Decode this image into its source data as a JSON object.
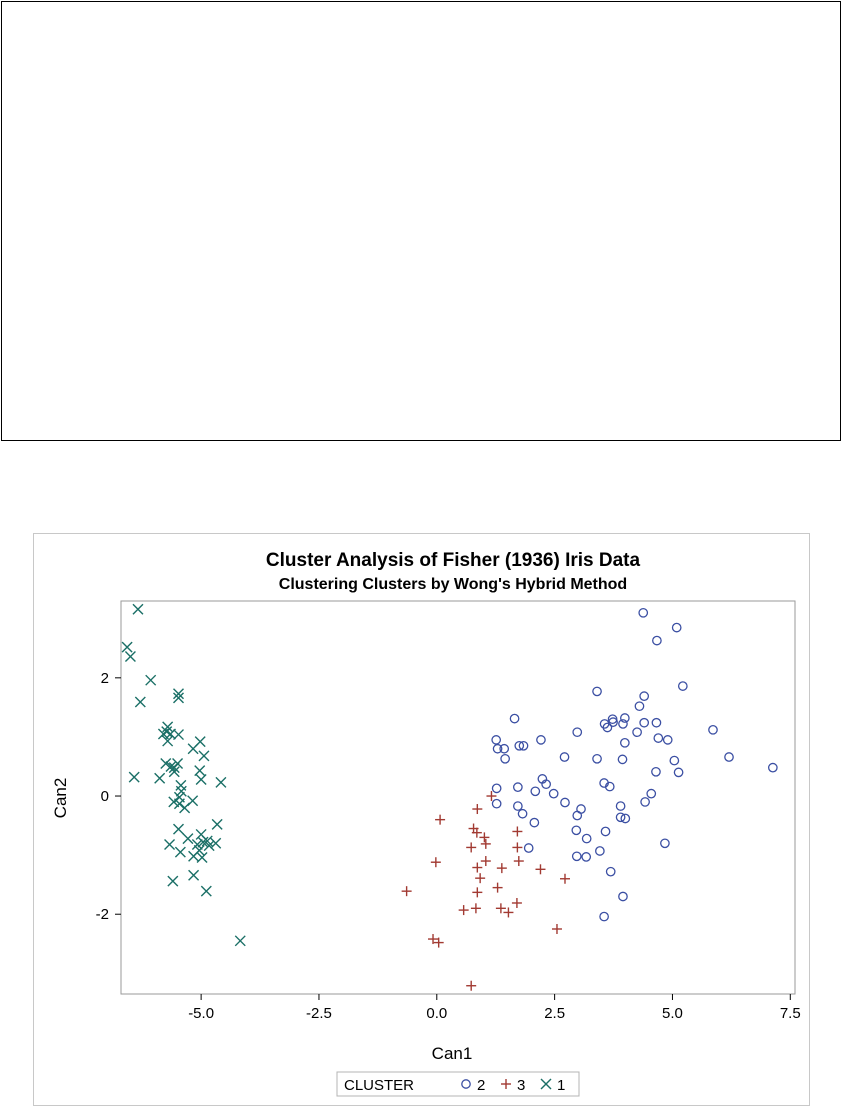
{
  "chart_data": {
    "type": "scatter",
    "title": "Cluster Analysis of Fisher (1936) Iris Data",
    "subtitle": "Clustering Clusters by Wong's Hybrid Method",
    "xlabel": "Can1",
    "ylabel": "Can2",
    "xlim": [
      -6.7,
      7.6
    ],
    "ylim": [
      -3.35,
      3.3
    ],
    "xticks": [
      -5.0,
      -2.5,
      0.0,
      2.5,
      5.0,
      7.5
    ],
    "xtick_labels": [
      "-5.0",
      "-2.5",
      "0.0",
      "2.5",
      "5.0",
      "7.5"
    ],
    "yticks": [
      -2,
      0,
      2
    ],
    "ytick_labels": [
      "-2",
      "0",
      "2"
    ],
    "grid": false,
    "legend": {
      "title": "CLUSTER",
      "placement": "bottom-center",
      "entries": [
        "2",
        "3",
        "1"
      ]
    },
    "series": [
      {
        "name": "2",
        "marker": "circle",
        "color": "#3b4fa3",
        "points": [
          [
            4.38,
            3.1
          ],
          [
            5.09,
            2.85
          ],
          [
            4.67,
            2.63
          ],
          [
            5.22,
            1.86
          ],
          [
            3.4,
            1.77
          ],
          [
            4.4,
            1.69
          ],
          [
            4.3,
            1.52
          ],
          [
            1.65,
            1.31
          ],
          [
            3.73,
            1.3
          ],
          [
            3.99,
            1.32
          ],
          [
            3.74,
            1.25
          ],
          [
            4.4,
            1.24
          ],
          [
            3.95,
            1.22
          ],
          [
            4.66,
            1.24
          ],
          [
            3.56,
            1.22
          ],
          [
            3.62,
            1.16
          ],
          [
            5.86,
            1.12
          ],
          [
            2.98,
            1.08
          ],
          [
            4.25,
            1.08
          ],
          [
            4.7,
            0.98
          ],
          [
            4.9,
            0.95
          ],
          [
            2.21,
            0.95
          ],
          [
            1.26,
            0.95
          ],
          [
            3.99,
            0.9
          ],
          [
            1.29,
            0.8
          ],
          [
            1.75,
            0.85
          ],
          [
            1.84,
            0.85
          ],
          [
            1.43,
            0.8
          ],
          [
            6.2,
            0.66
          ],
          [
            2.71,
            0.66
          ],
          [
            1.45,
            0.63
          ],
          [
            3.4,
            0.63
          ],
          [
            3.94,
            0.62
          ],
          [
            5.04,
            0.6
          ],
          [
            7.13,
            0.48
          ],
          [
            4.65,
            0.41
          ],
          [
            5.13,
            0.4
          ],
          [
            2.24,
            0.29
          ],
          [
            3.55,
            0.22
          ],
          [
            2.32,
            0.2
          ],
          [
            3.67,
            0.16
          ],
          [
            1.72,
            0.15
          ],
          [
            1.27,
            0.13
          ],
          [
            2.09,
            0.08
          ],
          [
            2.48,
            0.04
          ],
          [
            4.55,
            0.04
          ],
          [
            4.42,
            -0.1
          ],
          [
            2.72,
            -0.11
          ],
          [
            1.27,
            -0.13
          ],
          [
            1.72,
            -0.17
          ],
          [
            3.9,
            -0.17
          ],
          [
            3.06,
            -0.22
          ],
          [
            2.98,
            -0.33
          ],
          [
            3.9,
            -0.36
          ],
          [
            1.82,
            -0.3
          ],
          [
            4.0,
            -0.38
          ],
          [
            2.07,
            -0.45
          ],
          [
            2.96,
            -0.58
          ],
          [
            3.58,
            -0.6
          ],
          [
            3.18,
            -0.72
          ],
          [
            4.84,
            -0.8
          ],
          [
            1.95,
            -0.88
          ],
          [
            3.46,
            -0.93
          ],
          [
            2.97,
            -1.02
          ],
          [
            3.17,
            -1.03
          ],
          [
            3.69,
            -1.28
          ],
          [
            3.95,
            -1.7
          ],
          [
            3.55,
            -2.04
          ]
        ]
      },
      {
        "name": "3",
        "marker": "plus",
        "color": "#a23a32",
        "points": [
          [
            0.07,
            -0.4
          ],
          [
            0.86,
            -0.22
          ],
          [
            1.16,
            0.0
          ],
          [
            0.78,
            -0.55
          ],
          [
            0.85,
            -0.62
          ],
          [
            1.71,
            -0.6
          ],
          [
            1.01,
            -0.7
          ],
          [
            1.04,
            -0.81
          ],
          [
            0.73,
            -0.87
          ],
          [
            1.71,
            -0.87
          ],
          [
            1.04,
            -1.1
          ],
          [
            0.86,
            -1.21
          ],
          [
            1.74,
            -1.1
          ],
          [
            -0.02,
            -1.12
          ],
          [
            1.38,
            -1.22
          ],
          [
            2.2,
            -1.24
          ],
          [
            0.92,
            -1.39
          ],
          [
            2.72,
            -1.4
          ],
          [
            1.29,
            -1.55
          ],
          [
            0.86,
            -1.63
          ],
          [
            -0.64,
            -1.61
          ],
          [
            1.7,
            -1.81
          ],
          [
            1.36,
            -1.9
          ],
          [
            0.83,
            -1.9
          ],
          [
            0.57,
            -1.93
          ],
          [
            1.52,
            -1.97
          ],
          [
            2.55,
            -2.25
          ],
          [
            -0.08,
            -2.42
          ],
          [
            0.04,
            -2.48
          ],
          [
            0.73,
            -3.21
          ]
        ]
      },
      {
        "name": "1",
        "marker": "x",
        "color": "#1a6f66",
        "points": [
          [
            -6.34,
            3.16
          ],
          [
            -6.57,
            2.52
          ],
          [
            -6.5,
            2.36
          ],
          [
            -6.07,
            1.96
          ],
          [
            -5.48,
            1.73
          ],
          [
            -5.48,
            1.66
          ],
          [
            -6.29,
            1.59
          ],
          [
            -5.71,
            1.17
          ],
          [
            -5.73,
            1.09
          ],
          [
            -5.8,
            1.05
          ],
          [
            -5.65,
            1.05
          ],
          [
            -5.48,
            1.04
          ],
          [
            -5.71,
            0.93
          ],
          [
            -5.02,
            0.92
          ],
          [
            -5.17,
            0.8
          ],
          [
            -4.94,
            0.68
          ],
          [
            -5.75,
            0.55
          ],
          [
            -5.64,
            0.5
          ],
          [
            -5.57,
            0.48
          ],
          [
            -5.5,
            0.55
          ],
          [
            -5.03,
            0.43
          ],
          [
            -5.57,
            0.41
          ],
          [
            -6.42,
            0.32
          ],
          [
            -5.88,
            0.3
          ],
          [
            -5.0,
            0.28
          ],
          [
            -4.58,
            0.23
          ],
          [
            -5.43,
            0.18
          ],
          [
            -5.42,
            0.08
          ],
          [
            -5.46,
            -0.02
          ],
          [
            -5.18,
            -0.08
          ],
          [
            -5.58,
            -0.1
          ],
          [
            -5.46,
            -0.13
          ],
          [
            -5.35,
            -0.2
          ],
          [
            -4.66,
            -0.48
          ],
          [
            -5.48,
            -0.56
          ],
          [
            -5.0,
            -0.65
          ],
          [
            -5.28,
            -0.72
          ],
          [
            -4.87,
            -0.76
          ],
          [
            -4.96,
            -0.78
          ],
          [
            -4.69,
            -0.8
          ],
          [
            -5.08,
            -0.82
          ],
          [
            -5.67,
            -0.82
          ],
          [
            -4.83,
            -0.84
          ],
          [
            -5.04,
            -0.92
          ],
          [
            -5.44,
            -0.95
          ],
          [
            -5.16,
            -1.02
          ],
          [
            -4.98,
            -1.04
          ],
          [
            -5.16,
            -1.34
          ],
          [
            -5.6,
            -1.44
          ],
          [
            -4.89,
            -1.61
          ],
          [
            -4.17,
            -2.45
          ]
        ]
      }
    ]
  }
}
